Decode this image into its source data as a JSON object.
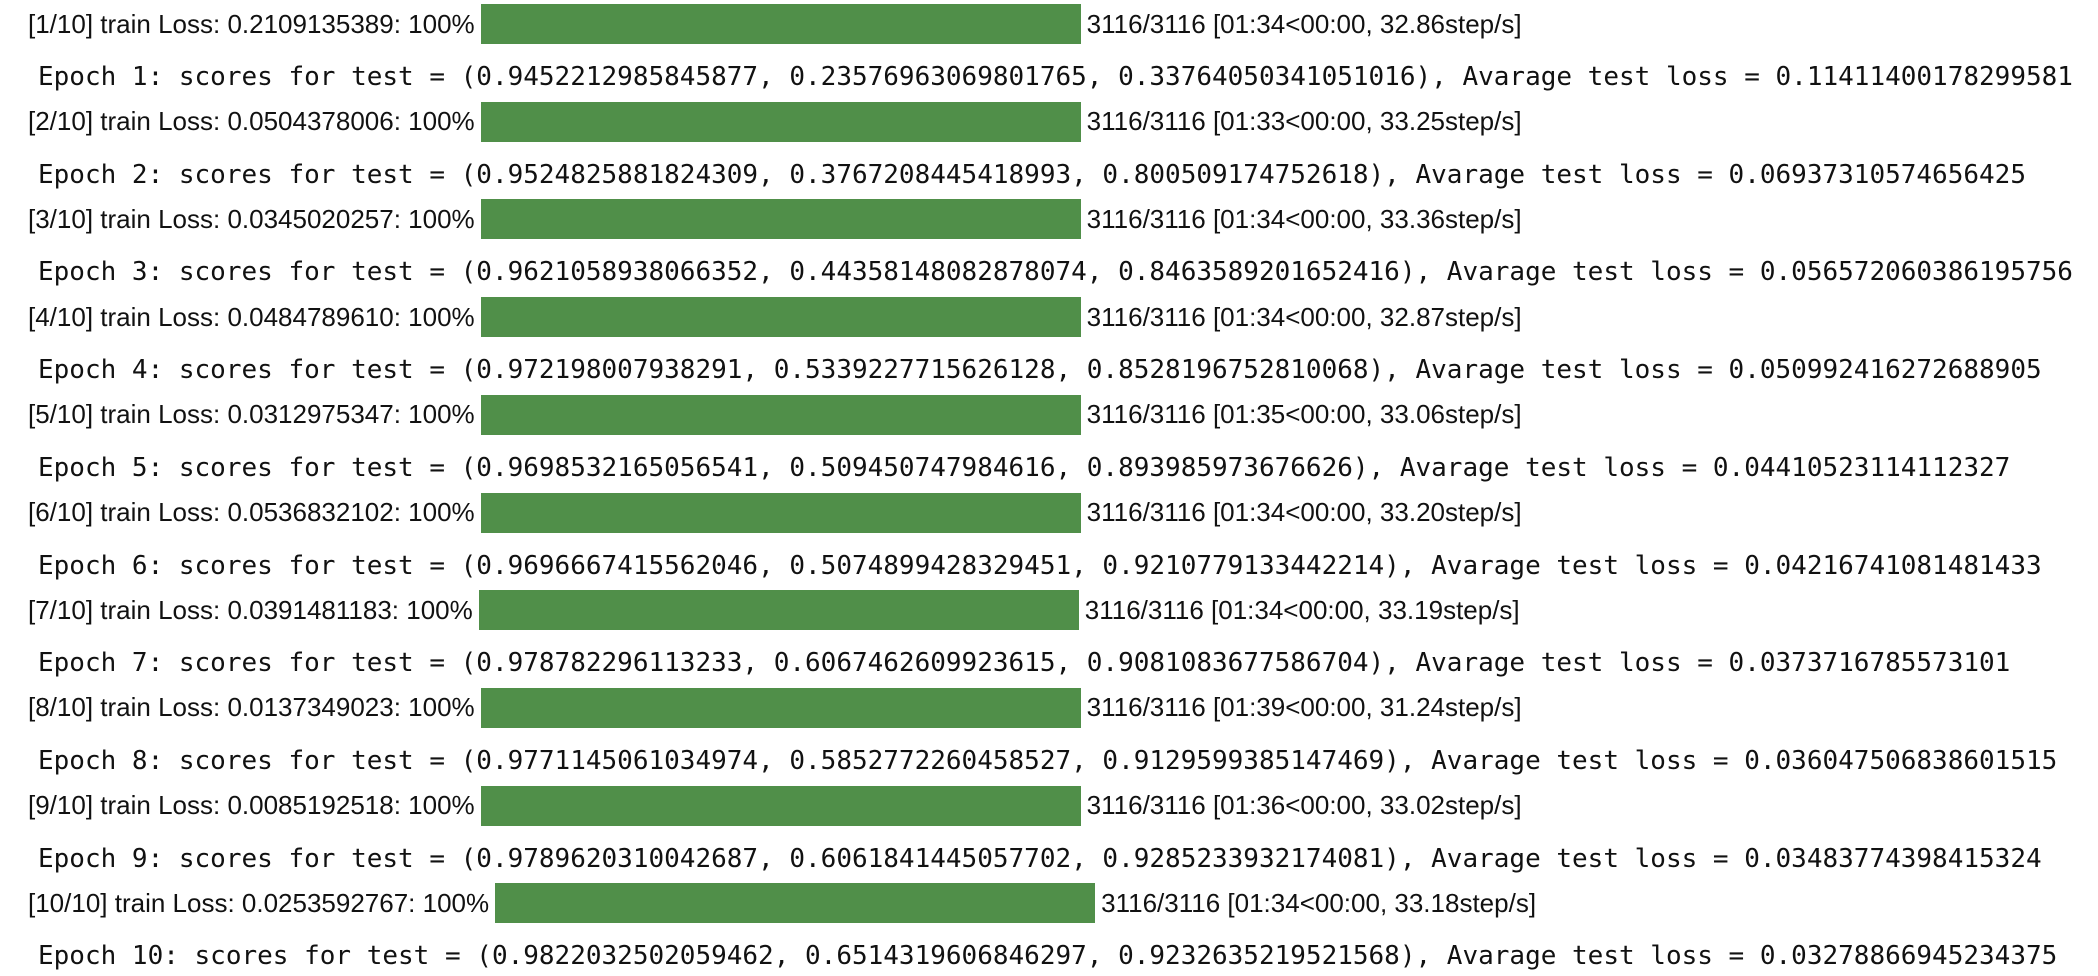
{
  "colors": {
    "bar_fill": "#508f49",
    "text": "#111111",
    "background": "#ffffff"
  },
  "epochs": [
    {
      "progress_label": "[1/10] train Loss: 0.2109135389: 100%",
      "progress_fraction": 1.0,
      "progress_status": "3116/3116 [01:34<00:00, 32.86step/s]",
      "scores_line": "Epoch 1: scores for test = (0.9452212985845877, 0.23576963069801765, 0.33764050341051016), Avarage test loss = 0.11411400178299581"
    },
    {
      "progress_label": "[2/10] train Loss: 0.0504378006: 100%",
      "progress_fraction": 1.0,
      "progress_status": "3116/3116 [01:33<00:00, 33.25step/s]",
      "scores_line": "Epoch 2: scores for test = (0.9524825881824309, 0.3767208445418993, 0.800509174752618), Avarage test loss = 0.06937310574656425"
    },
    {
      "progress_label": "[3/10] train Loss: 0.0345020257: 100%",
      "progress_fraction": 1.0,
      "progress_status": "3116/3116 [01:34<00:00, 33.36step/s]",
      "scores_line": "Epoch 3: scores for test = (0.9621058938066352, 0.44358148082878074, 0.8463589201652416), Avarage test loss = 0.056572060386195756"
    },
    {
      "progress_label": "[4/10] train Loss: 0.0484789610: 100%",
      "progress_fraction": 1.0,
      "progress_status": "3116/3116 [01:34<00:00, 32.87step/s]",
      "scores_line": "Epoch 4: scores for test = (0.972198007938291, 0.5339227715626128, 0.8528196752810068), Avarage test loss = 0.050992416272688905"
    },
    {
      "progress_label": "[5/10] train Loss: 0.0312975347: 100%",
      "progress_fraction": 1.0,
      "progress_status": "3116/3116 [01:35<00:00, 33.06step/s]",
      "scores_line": "Epoch 5: scores for test = (0.9698532165056541, 0.509450747984616, 0.893985973676626), Avarage test loss = 0.04410523114112327"
    },
    {
      "progress_label": "[6/10] train Loss: 0.0536832102: 100%",
      "progress_fraction": 1.0,
      "progress_status": "3116/3116 [01:34<00:00, 33.20step/s]",
      "scores_line": "Epoch 6: scores for test = (0.9696667415562046, 0.5074899428329451, 0.9210779133442214), Avarage test loss = 0.04216741081481433"
    },
    {
      "progress_label": "[7/10] train Loss: 0.0391481183: 100%",
      "progress_fraction": 1.0,
      "progress_status": "3116/3116 [01:34<00:00, 33.19step/s]",
      "scores_line": "Epoch 7: scores for test = (0.978782296113233, 0.6067462609923615, 0.9081083677586704), Avarage test loss = 0.0373716785573101"
    },
    {
      "progress_label": "[8/10] train Loss: 0.0137349023: 100%",
      "progress_fraction": 1.0,
      "progress_status": "3116/3116 [01:39<00:00, 31.24step/s]",
      "scores_line": "Epoch 8: scores for test = (0.9771145061034974, 0.5852772260458527, 0.9129599385147469), Avarage test loss = 0.036047506838601515"
    },
    {
      "progress_label": "[9/10] train Loss: 0.0085192518: 100%",
      "progress_fraction": 1.0,
      "progress_status": "3116/3116 [01:36<00:00, 33.02step/s]",
      "scores_line": "Epoch 9: scores for test = (0.9789620310042687, 0.6061841445057702, 0.9285233932174081), Avarage test loss = 0.03483774398415324"
    },
    {
      "progress_label": "[10/10] train Loss: 0.0253592767: 100%",
      "progress_fraction": 1.0,
      "progress_status": "3116/3116 [01:34<00:00, 33.18step/s]",
      "scores_line": "Epoch 10: scores for test = (0.9822032502059462, 0.6514319606846297, 0.9232635219521568), Avarage test loss = 0.03278866945234375"
    }
  ]
}
